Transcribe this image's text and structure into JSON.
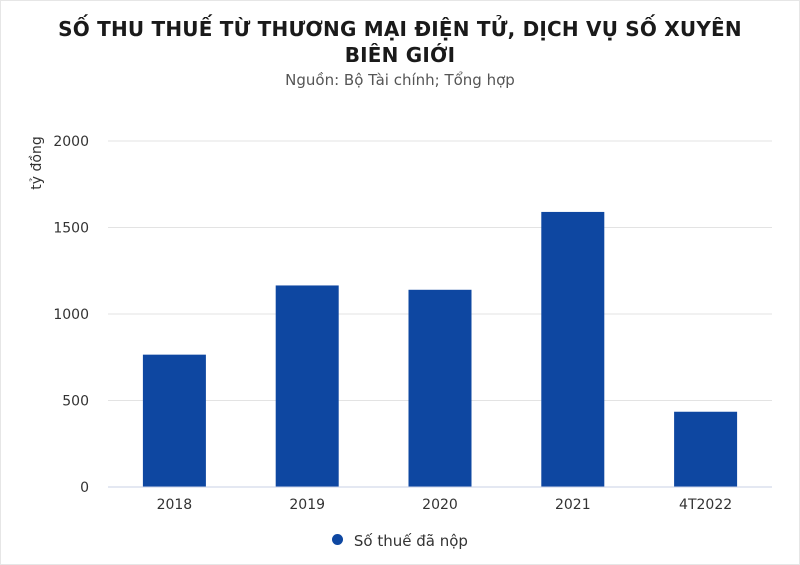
{
  "chart_data": {
    "type": "bar",
    "title_lines": [
      "SỐ THU THUẾ TỪ THƯƠNG MẠI ĐIỆN TỬ, DỊCH VỤ SỐ XUYÊN",
      "BIÊN GIỚI"
    ],
    "subtitle": "Nguồn: Bộ Tài chính; Tổng hợp",
    "ylabel": "tỷ đồng",
    "xlabel": "",
    "categories": [
      "2018",
      "2019",
      "2020",
      "2021",
      "4T2022"
    ],
    "series": [
      {
        "name": "Số thuế đã nộp",
        "values": [
          765,
          1165,
          1140,
          1590,
          435
        ]
      }
    ],
    "ylim": [
      0,
      2000
    ],
    "yticks": [
      0,
      500,
      1000,
      1500,
      2000
    ],
    "grid": true,
    "legend_position": "bottom",
    "bar_color": "#0e47a1"
  }
}
